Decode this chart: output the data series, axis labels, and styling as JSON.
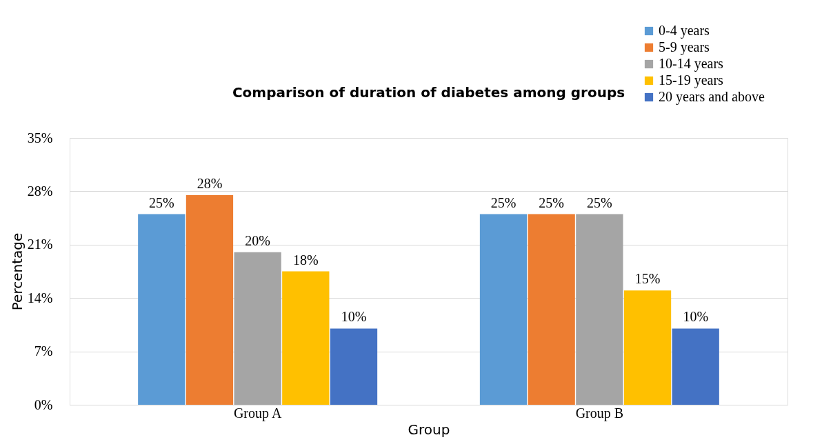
{
  "chart_data": {
    "type": "bar",
    "title": "Comparison of duration of diabetes among groups",
    "xlabel": "Group",
    "ylabel": "Percentage",
    "categories": [
      "Group A",
      "Group B"
    ],
    "series": [
      {
        "name": "0-4 years",
        "color": "#5b9bd5",
        "values": [
          25,
          25
        ],
        "value_labels": [
          "25%",
          "25%"
        ]
      },
      {
        "name": "5-9 years",
        "color": "#ed7d31",
        "values": [
          27.5,
          25
        ],
        "value_labels": [
          "28%",
          "25%"
        ]
      },
      {
        "name": "10-14 years",
        "color": "#a5a5a5",
        "values": [
          20,
          25
        ],
        "value_labels": [
          "20%",
          "25%"
        ]
      },
      {
        "name": "15-19 years",
        "color": "#ffc000",
        "values": [
          17.5,
          15
        ],
        "value_labels": [
          "18%",
          "15%"
        ]
      },
      {
        "name": "20 years and above",
        "color": "#4472c4",
        "values": [
          10,
          10
        ],
        "value_labels": [
          "10%",
          "10%"
        ]
      }
    ],
    "ylim": [
      0,
      35
    ],
    "yticks": [
      {
        "value": 0,
        "label": "0%"
      },
      {
        "value": 7,
        "label": "7%"
      },
      {
        "value": 14,
        "label": "14%"
      },
      {
        "value": 21,
        "label": "21%"
      },
      {
        "value": 28,
        "label": "28%"
      },
      {
        "value": 35,
        "label": "35%"
      }
    ],
    "grid": "y",
    "legend": "top right"
  }
}
